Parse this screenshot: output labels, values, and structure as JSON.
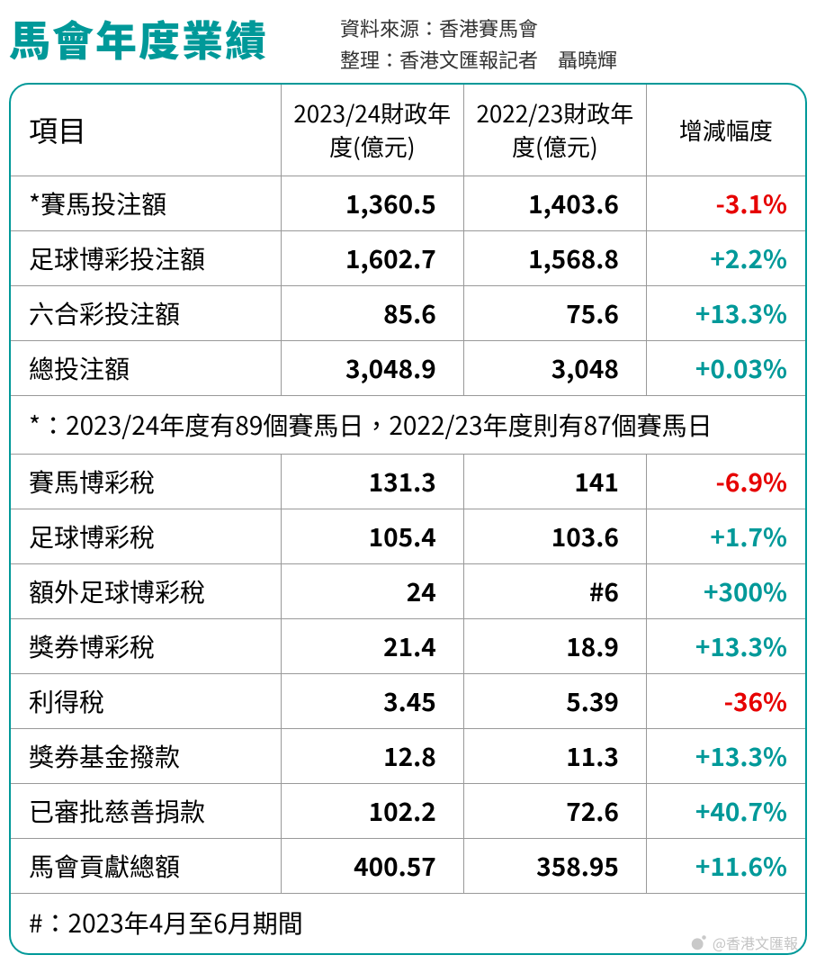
{
  "colors": {
    "title": "#009999",
    "border": "#009999",
    "positive": "#009999",
    "negative": "#e60000",
    "text": "#222222",
    "row_border": "#999999"
  },
  "fonts": {
    "title_size": 46,
    "header_size": 26,
    "cell_size": 28,
    "note_size": 24,
    "meta_size": 22
  },
  "title": "馬會年度業績",
  "meta": {
    "source_label": "資料來源：",
    "source_value": "香港賽馬會",
    "editor_label": "整理：",
    "editor_value": "香港文匯報記者　聶曉輝"
  },
  "columns": [
    "項目",
    "2023/24財政年度(億元)",
    "2022/23財政年度(億元)",
    "增減幅度"
  ],
  "section1": [
    {
      "label": "*賽馬投注額",
      "fy24": "1,360.5",
      "fy23": "1,403.6",
      "delta": "-3.1%",
      "pos": false
    },
    {
      "label": "足球博彩投注額",
      "fy24": "1,602.7",
      "fy23": "1,568.8",
      "delta": "+2.2%",
      "pos": true
    },
    {
      "label": "六合彩投注額",
      "fy24": "85.6",
      "fy23": "75.6",
      "delta": "+13.3%",
      "pos": true
    },
    {
      "label": "總投注額",
      "fy24": "3,048.9",
      "fy23": "3,048",
      "delta": "+0.03%",
      "pos": true
    }
  ],
  "note1": "*：2023/24年度有89個賽馬日，2022/23年度則有87個賽馬日",
  "section2": [
    {
      "label": "賽馬博彩稅",
      "fy24": "131.3",
      "fy23": "141",
      "delta": "-6.9%",
      "pos": false
    },
    {
      "label": "足球博彩稅",
      "fy24": "105.4",
      "fy23": "103.6",
      "delta": "+1.7%",
      "pos": true
    },
    {
      "label": "額外足球博彩稅",
      "fy24": "24",
      "fy23": "#6",
      "delta": "+300%",
      "pos": true
    },
    {
      "label": "獎券博彩稅",
      "fy24": "21.4",
      "fy23": "18.9",
      "delta": "+13.3%",
      "pos": true
    },
    {
      "label": "利得稅",
      "fy24": "3.45",
      "fy23": "5.39",
      "delta": "-36%",
      "pos": false
    },
    {
      "label": "獎券基金撥款",
      "fy24": "12.8",
      "fy23": "11.3",
      "delta": "+13.3%",
      "pos": true
    },
    {
      "label": "已審批慈善捐款",
      "fy24": "102.2",
      "fy23": "72.6",
      "delta": "+40.7%",
      "pos": true
    },
    {
      "label": "馬會貢獻總額",
      "fy24": "400.57",
      "fy23": "358.95",
      "delta": "+11.6%",
      "pos": true
    }
  ],
  "note2": "#：2023年4月至6月期間",
  "watermark": "@香港文匯報"
}
